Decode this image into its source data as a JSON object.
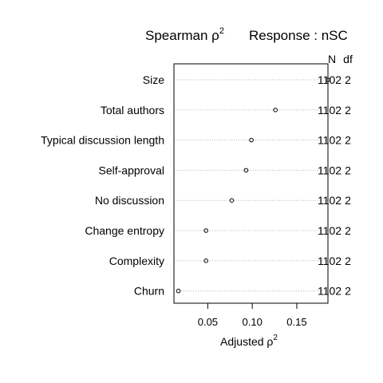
{
  "chart_data": {
    "type": "scatter",
    "title_left": "Spearman ρ",
    "title_left_sup": "2",
    "title_right": "Response : nSC",
    "xlabel": "Adjusted ρ",
    "xlabel_sup": "2",
    "xlim": [
      0.012,
      0.185
    ],
    "xticks": [
      0.05,
      0.1,
      0.15
    ],
    "xtick_labels": [
      "0.05",
      "0.10",
      "0.15"
    ],
    "grid": "dotted horizontal",
    "col_headers": [
      "N",
      "df"
    ],
    "rows": [
      {
        "label": "Size",
        "value": 0.185,
        "n": "1102",
        "df": "2"
      },
      {
        "label": "Total authors",
        "value": 0.126,
        "n": "1102",
        "df": "2"
      },
      {
        "label": "Typical discussion length",
        "value": 0.099,
        "n": "1102",
        "df": "2"
      },
      {
        "label": "Self-approval",
        "value": 0.093,
        "n": "1102",
        "df": "2"
      },
      {
        "label": "No discussion",
        "value": 0.077,
        "n": "1102",
        "df": "2"
      },
      {
        "label": "Change entropy",
        "value": 0.048,
        "n": "1102",
        "df": "2"
      },
      {
        "label": "Complexity",
        "value": 0.048,
        "n": "1102",
        "df": "2"
      },
      {
        "label": "Churn",
        "value": 0.017,
        "n": "1102",
        "df": "2"
      }
    ]
  }
}
